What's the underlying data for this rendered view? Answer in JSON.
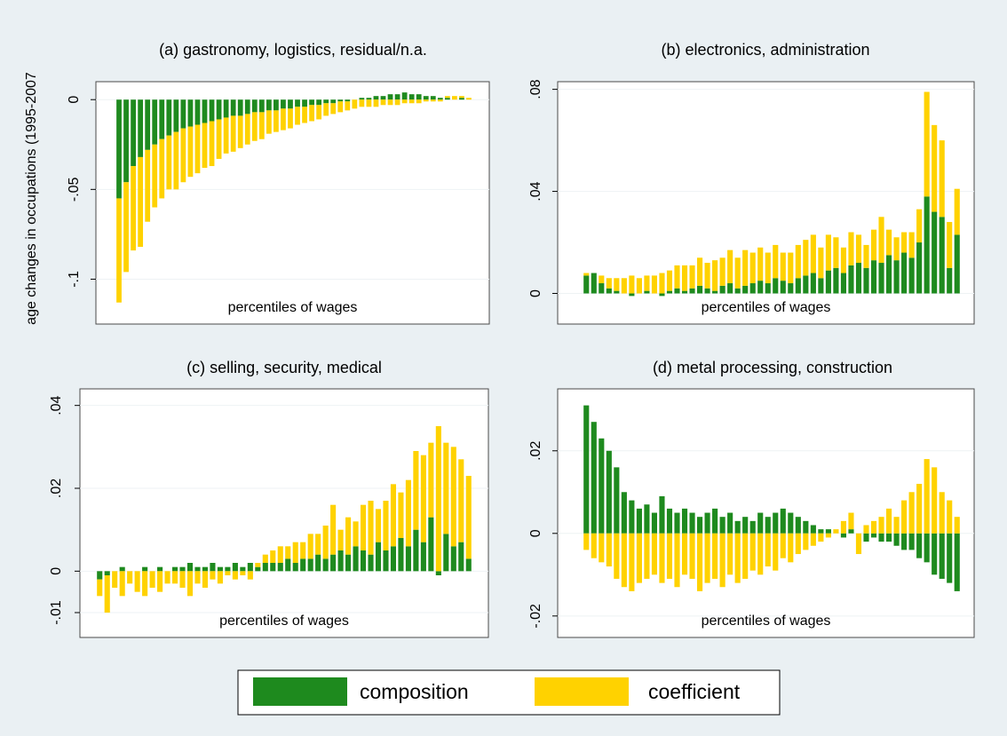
{
  "chart_data": [
    {
      "type": "bar",
      "stacked": true,
      "grid": true,
      "title": "(a) gastronomy, logistics, residual/n.a.",
      "ylabel": "age changes in occupations (1995-2007",
      "xlabel": "percentiles of wages",
      "ylim": [
        -0.125,
        0.01
      ],
      "yticks": [
        {
          "value": -0.1,
          "label": "-.1"
        },
        {
          "value": -0.05,
          "label": "-.05"
        },
        0
      ],
      "series": [
        {
          "name": "composition",
          "color": "#1e8a1e",
          "values": [
            -0.055,
            -0.046,
            -0.037,
            -0.032,
            -0.028,
            -0.025,
            -0.022,
            -0.02,
            -0.018,
            -0.016,
            -0.015,
            -0.014,
            -0.013,
            -0.012,
            -0.011,
            -0.01,
            -0.009,
            -0.009,
            -0.008,
            -0.007,
            -0.007,
            -0.006,
            -0.006,
            -0.005,
            -0.005,
            -0.004,
            -0.004,
            -0.003,
            -0.003,
            -0.002,
            -0.002,
            -0.001,
            -0.001,
            0,
            0.001,
            0.001,
            0.002,
            0.002,
            0.003,
            0.003,
            0.004,
            0.003,
            0.003,
            0.002,
            0.002,
            0.001,
            0.001,
            0,
            0.001,
            0
          ]
        },
        {
          "name": "coefficient",
          "color": "#ffd200",
          "values": [
            -0.058,
            -0.05,
            -0.047,
            -0.05,
            -0.04,
            -0.035,
            -0.033,
            -0.03,
            -0.032,
            -0.03,
            -0.028,
            -0.027,
            -0.025,
            -0.025,
            -0.022,
            -0.02,
            -0.02,
            -0.018,
            -0.017,
            -0.016,
            -0.015,
            -0.013,
            -0.012,
            -0.012,
            -0.011,
            -0.01,
            -0.009,
            -0.009,
            -0.008,
            -0.007,
            -0.006,
            -0.006,
            -0.005,
            -0.005,
            -0.004,
            -0.004,
            -0.004,
            -0.003,
            -0.003,
            -0.003,
            -0.002,
            -0.002,
            -0.002,
            -0.001,
            -0.001,
            -0.001,
            0.001,
            0.002,
            0.001,
            0.001
          ]
        }
      ]
    },
    {
      "type": "bar",
      "stacked": true,
      "grid": true,
      "title": "(b) electronics, administration",
      "xlabel": "percentiles of wages",
      "ylim": [
        -0.012,
        0.083
      ],
      "yticks": [
        0,
        {
          "value": 0.04,
          "label": ".04"
        },
        {
          "value": 0.08,
          "label": ".08"
        }
      ],
      "series": [
        {
          "name": "composition",
          "color": "#1e8a1e",
          "values": [
            0.007,
            0.008,
            0.004,
            0.002,
            0.001,
            0,
            -0.001,
            0,
            0.001,
            0,
            -0.001,
            0.001,
            0.002,
            0.001,
            0.002,
            0.003,
            0.002,
            0.001,
            0.003,
            0.004,
            0.002,
            0.003,
            0.004,
            0.005,
            0.004,
            0.006,
            0.005,
            0.004,
            0.006,
            0.007,
            0.008,
            0.006,
            0.009,
            0.01,
            0.008,
            0.011,
            0.012,
            0.01,
            0.013,
            0.012,
            0.015,
            0.013,
            0.016,
            0.014,
            0.02,
            0.038,
            0.032,
            0.03,
            0.01,
            0.023
          ]
        },
        {
          "name": "coefficient",
          "color": "#ffd200",
          "values": [
            0.001,
            0,
            0.003,
            0.004,
            0.005,
            0.006,
            0.007,
            0.006,
            0.006,
            0.007,
            0.008,
            0.008,
            0.009,
            0.01,
            0.009,
            0.011,
            0.01,
            0.012,
            0.011,
            0.013,
            0.012,
            0.014,
            0.012,
            0.013,
            0.012,
            0.013,
            0.011,
            0.012,
            0.013,
            0.014,
            0.015,
            0.012,
            0.014,
            0.012,
            0.01,
            0.013,
            0.011,
            0.009,
            0.012,
            0.018,
            0.01,
            0.009,
            0.008,
            0.01,
            0.013,
            0.041,
            0.034,
            0.03,
            0.018,
            0.018
          ]
        }
      ]
    },
    {
      "type": "bar",
      "stacked": true,
      "grid": true,
      "title": "(c) selling, security, medical",
      "xlabel": "percentiles of wages",
      "ylim": [
        -0.016,
        0.044
      ],
      "yticks": [
        {
          "value": -0.01,
          "label": "-.01"
        },
        0,
        {
          "value": 0.02,
          "label": ".02"
        },
        {
          "value": 0.04,
          "label": ".04"
        }
      ],
      "series": [
        {
          "name": "composition",
          "color": "#1e8a1e",
          "values": [
            -0.002,
            -0.001,
            0,
            0.001,
            0,
            0,
            0.001,
            0,
            0.001,
            0,
            0.001,
            0.001,
            0.002,
            0.001,
            0.001,
            0.002,
            0.001,
            0.001,
            0.002,
            0.001,
            0.002,
            0.001,
            0.002,
            0.002,
            0.002,
            0.003,
            0.002,
            0.003,
            0.003,
            0.004,
            0.003,
            0.004,
            0.005,
            0.004,
            0.006,
            0.005,
            0.004,
            0.007,
            0.005,
            0.006,
            0.008,
            0.006,
            0.01,
            0.007,
            0.013,
            -0.001,
            0.009,
            0.006,
            0.007,
            0.003
          ]
        },
        {
          "name": "coefficient",
          "color": "#ffd200",
          "values": [
            -0.004,
            -0.009,
            -0.004,
            -0.006,
            -0.003,
            -0.005,
            -0.006,
            -0.004,
            -0.005,
            -0.003,
            -0.003,
            -0.004,
            -0.006,
            -0.003,
            -0.004,
            -0.002,
            -0.003,
            -0.001,
            -0.002,
            -0.001,
            -0.002,
            0.001,
            0.002,
            0.003,
            0.004,
            0.003,
            0.005,
            0.004,
            0.006,
            0.005,
            0.008,
            0.012,
            0.005,
            0.009,
            0.006,
            0.011,
            0.013,
            0.008,
            0.012,
            0.015,
            0.011,
            0.016,
            0.019,
            0.021,
            0.018,
            0.035,
            0.022,
            0.024,
            0.02,
            0.02
          ]
        }
      ]
    },
    {
      "type": "bar",
      "stacked": true,
      "grid": true,
      "title": "(d) metal processing, construction",
      "xlabel": "percentiles of wages",
      "ylim": [
        -0.0252,
        0.035
      ],
      "yticks": [
        {
          "value": -0.02,
          "label": "-.02"
        },
        0,
        {
          "value": 0.02,
          "label": ".02"
        }
      ],
      "series": [
        {
          "name": "composition",
          "color": "#1e8a1e",
          "values": [
            0.031,
            0.027,
            0.023,
            0.02,
            0.016,
            0.01,
            0.008,
            0.006,
            0.007,
            0.005,
            0.009,
            0.006,
            0.005,
            0.006,
            0.005,
            0.004,
            0.005,
            0.006,
            0.004,
            0.005,
            0.003,
            0.004,
            0.003,
            0.005,
            0.004,
            0.005,
            0.006,
            0.005,
            0.004,
            0.003,
            0.002,
            0.001,
            0.001,
            0,
            -0.001,
            0.001,
            0,
            -0.002,
            -0.001,
            -0.002,
            -0.002,
            -0.003,
            -0.004,
            -0.004,
            -0.006,
            -0.007,
            -0.01,
            -0.011,
            -0.012,
            -0.014
          ]
        },
        {
          "name": "coefficient",
          "color": "#ffd200",
          "values": [
            -0.004,
            -0.006,
            -0.007,
            -0.008,
            -0.011,
            -0.013,
            -0.014,
            -0.012,
            -0.011,
            -0.01,
            -0.012,
            -0.011,
            -0.013,
            -0.01,
            -0.011,
            -0.014,
            -0.012,
            -0.011,
            -0.013,
            -0.01,
            -0.012,
            -0.011,
            -0.009,
            -0.01,
            -0.008,
            -0.009,
            -0.006,
            -0.007,
            -0.005,
            -0.004,
            -0.003,
            -0.002,
            -0.001,
            0.001,
            0.003,
            0.004,
            -0.005,
            0.002,
            0.003,
            0.004,
            0.006,
            0.004,
            0.008,
            0.01,
            0.012,
            0.018,
            0.016,
            0.01,
            0.008,
            0.004
          ]
        }
      ]
    }
  ]
}
